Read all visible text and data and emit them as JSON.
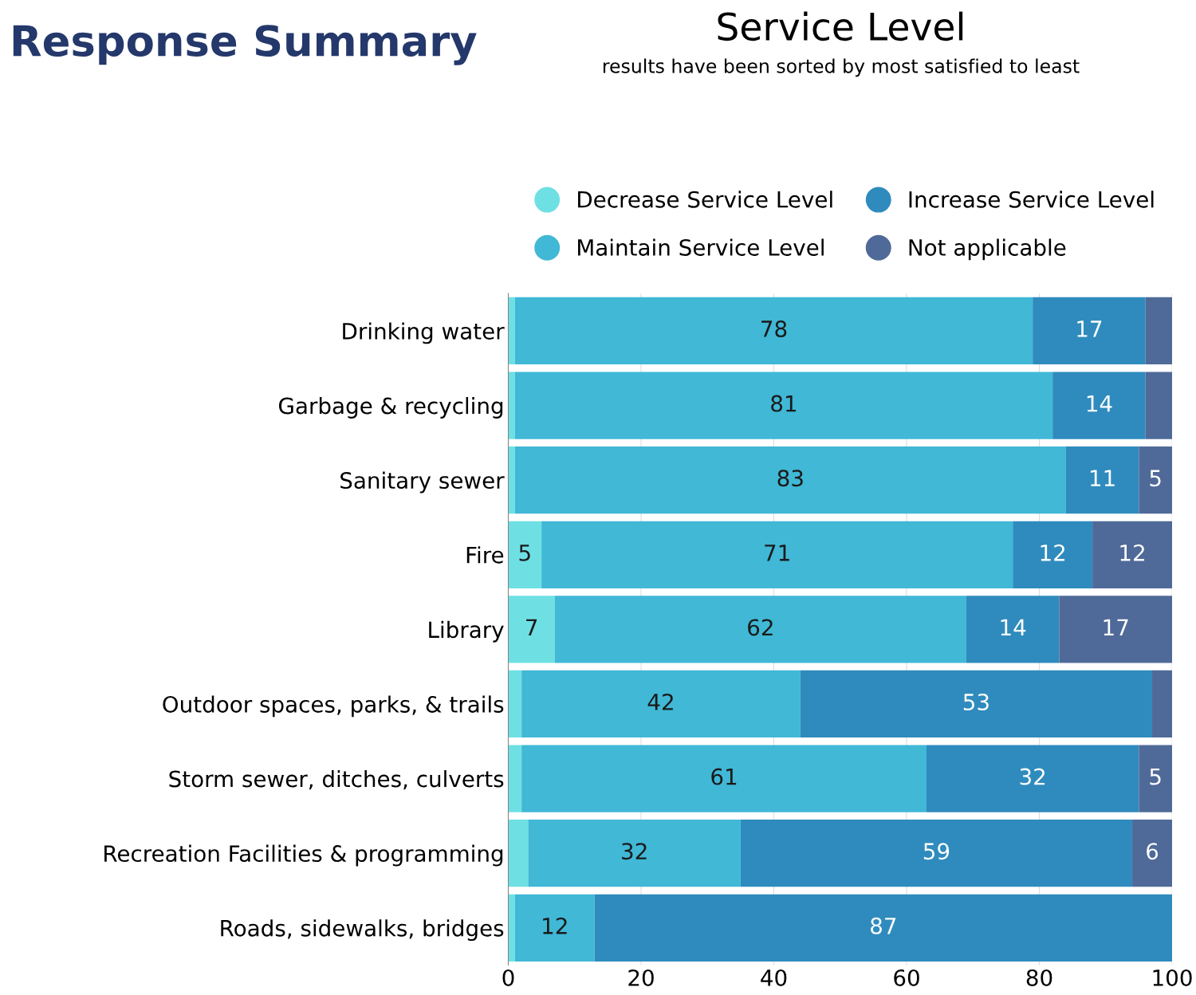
{
  "chart_data": {
    "type": "bar",
    "orientation": "horizontal",
    "stacked": true,
    "title": "Service Level",
    "subtitle": "results have been sorted by most satisfied to least",
    "annotations": [
      "Response Summary"
    ],
    "categories": [
      "Drinking water",
      "Garbage & recycling",
      "Sanitary sewer",
      "Fire",
      "Library",
      "Outdoor spaces, parks, & trails",
      "Storm sewer, ditches, culverts",
      "Recreation Facilities & programming",
      "Roads, sidewalks, bridges"
    ],
    "series": [
      {
        "name": "Decrease Service Level",
        "color": "#6ee0e4",
        "values": [
          1,
          1,
          1,
          5,
          7,
          2,
          2,
          3,
          1
        ],
        "value_labels": [
          null,
          null,
          null,
          "5",
          "7",
          null,
          null,
          null,
          null
        ]
      },
      {
        "name": "Maintain Service Level",
        "color": "#40b8d6",
        "values": [
          78,
          81,
          83,
          71,
          62,
          42,
          61,
          32,
          12
        ],
        "value_labels": [
          "78",
          "81",
          "83",
          "71",
          "62",
          "42",
          "61",
          "32",
          "12"
        ]
      },
      {
        "name": "Increase Service Level",
        "color": "#2f8bbd",
        "values": [
          17,
          14,
          11,
          12,
          14,
          53,
          32,
          59,
          87
        ],
        "value_labels": [
          "17",
          "14",
          "11",
          "12",
          "14",
          "53",
          "32",
          "59",
          "87"
        ]
      },
      {
        "name": "Not applicable",
        "color": "#4f6a99",
        "values": [
          4,
          4,
          5,
          12,
          17,
          3,
          5,
          6,
          0
        ],
        "value_labels": [
          null,
          null,
          "5",
          "12",
          "17",
          null,
          "5",
          "6",
          null
        ]
      }
    ],
    "xlim": [
      0,
      100
    ],
    "xticks": [
      0,
      20,
      40,
      60,
      80,
      100
    ],
    "grid": "x",
    "legend": "top"
  }
}
